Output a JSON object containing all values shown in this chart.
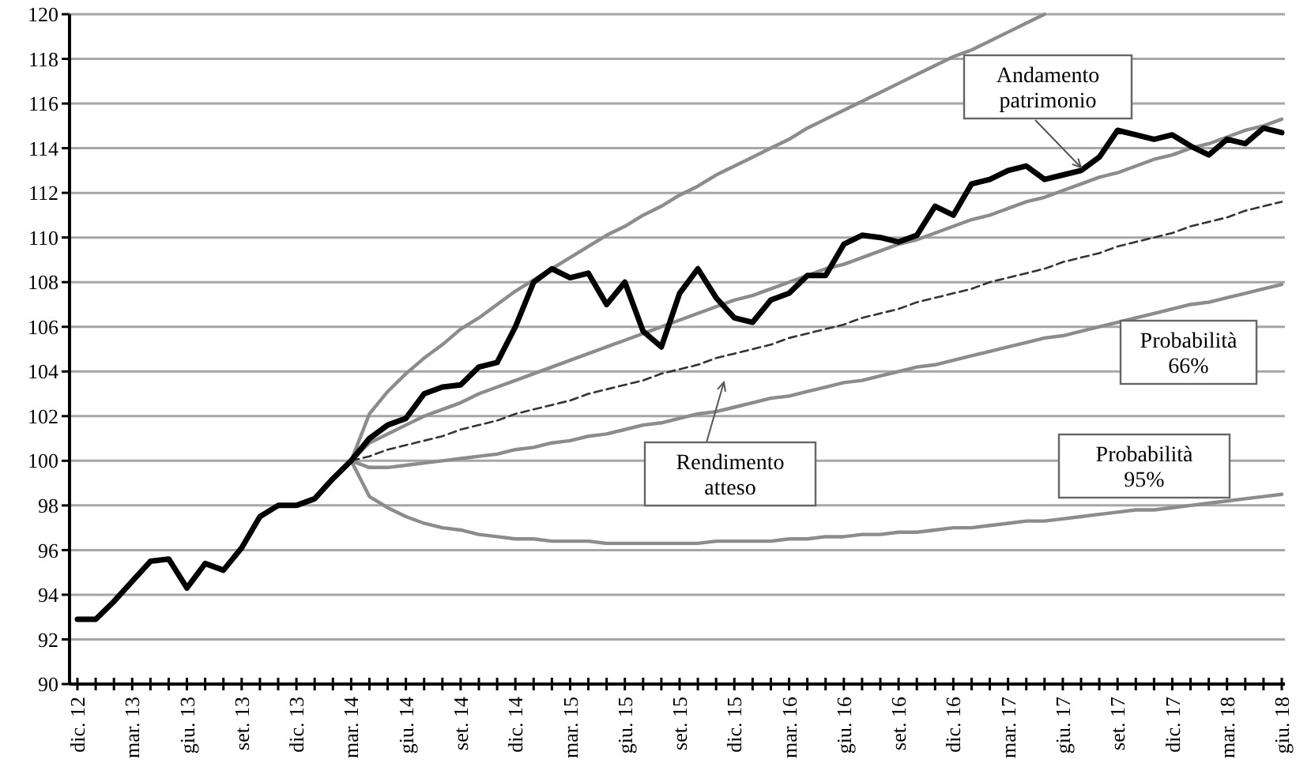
{
  "chart_data": {
    "type": "line",
    "categories": [
      "dic. 12",
      null,
      null,
      "mar. 13",
      null,
      null,
      "giu. 13",
      null,
      null,
      "set. 13",
      null,
      null,
      "dic. 13",
      null,
      null,
      "mar. 14",
      null,
      null,
      "giu. 14",
      null,
      null,
      "set. 14",
      null,
      null,
      "dic. 14",
      null,
      null,
      "mar. 15",
      null,
      null,
      "giu. 15",
      null,
      null,
      "set. 15",
      null,
      null,
      "dic. 15",
      null,
      null,
      "mar. 16",
      null,
      null,
      "giu. 16",
      null,
      null,
      "set. 16",
      null,
      null,
      "dic. 16",
      null,
      null,
      "mar. 17",
      null,
      null,
      "giu. 17",
      null,
      null,
      "set. 17",
      null,
      null,
      "dic. 17",
      null,
      null,
      "mar. 18",
      null,
      null,
      "giu. 18"
    ],
    "series": [
      {
        "color": "#8c8c8c",
        "line_style": "solid",
        "values": [
          null,
          null,
          null,
          null,
          null,
          null,
          null,
          null,
          null,
          null,
          null,
          null,
          null,
          null,
          null,
          100.0,
          102.1,
          103.1,
          103.9,
          104.6,
          105.2,
          105.9,
          106.4,
          107.0,
          107.6,
          108.1,
          108.6,
          109.1,
          109.6,
          110.1,
          110.5,
          111.0,
          111.4,
          111.9,
          112.3,
          112.8,
          113.2,
          113.6,
          114.0,
          114.4,
          114.9,
          115.3,
          115.7,
          116.1,
          116.5,
          116.9,
          117.3,
          117.7,
          118.1,
          118.4,
          118.8,
          119.2,
          119.6,
          120.0,
          null,
          null,
          null,
          null,
          null,
          null,
          null,
          null,
          null,
          null,
          null,
          null,
          null
        ]
      },
      {
        "color": "#8c8c8c",
        "line_style": "solid",
        "values": [
          null,
          null,
          null,
          null,
          null,
          null,
          null,
          null,
          null,
          null,
          null,
          null,
          null,
          null,
          null,
          100.0,
          100.8,
          101.2,
          101.6,
          102.0,
          102.3,
          102.6,
          103.0,
          103.3,
          103.6,
          103.9,
          104.2,
          104.5,
          104.8,
          105.1,
          105.4,
          105.7,
          106.0,
          106.3,
          106.6,
          106.9,
          107.2,
          107.4,
          107.7,
          108.0,
          108.3,
          108.6,
          108.8,
          109.1,
          109.4,
          109.7,
          109.9,
          110.2,
          110.5,
          110.8,
          111.0,
          111.3,
          111.6,
          111.8,
          112.1,
          112.4,
          112.7,
          112.9,
          113.2,
          113.5,
          113.7,
          114.0,
          114.2,
          114.5,
          114.8,
          115.0,
          115.3
        ]
      },
      {
        "color": "#333333",
        "line_style": "dashed",
        "values": [
          null,
          null,
          null,
          null,
          null,
          null,
          null,
          null,
          null,
          null,
          null,
          null,
          null,
          null,
          null,
          100.0,
          100.2,
          100.5,
          100.7,
          100.9,
          101.1,
          101.4,
          101.6,
          101.8,
          102.1,
          102.3,
          102.5,
          102.7,
          103.0,
          103.2,
          103.4,
          103.6,
          103.9,
          104.1,
          104.3,
          104.6,
          104.8,
          105.0,
          105.2,
          105.5,
          105.7,
          105.9,
          106.1,
          106.4,
          106.6,
          106.8,
          107.1,
          107.3,
          107.5,
          107.7,
          108.0,
          108.2,
          108.4,
          108.6,
          108.9,
          109.1,
          109.3,
          109.6,
          109.8,
          110.0,
          110.2,
          110.5,
          110.7,
          110.9,
          111.2,
          111.4,
          111.6
        ]
      },
      {
        "color": "#8c8c8c",
        "line_style": "solid",
        "values": [
          null,
          null,
          null,
          null,
          null,
          null,
          null,
          null,
          null,
          null,
          null,
          null,
          null,
          null,
          null,
          100.0,
          99.7,
          99.7,
          99.8,
          99.9,
          100.0,
          100.1,
          100.2,
          100.3,
          100.5,
          100.6,
          100.8,
          100.9,
          101.1,
          101.2,
          101.4,
          101.6,
          101.7,
          101.9,
          102.1,
          102.2,
          102.4,
          102.6,
          102.8,
          102.9,
          103.1,
          103.3,
          103.5,
          103.6,
          103.8,
          104.0,
          104.2,
          104.3,
          104.5,
          104.7,
          104.9,
          105.1,
          105.3,
          105.5,
          105.6,
          105.8,
          106.0,
          106.2,
          106.4,
          106.6,
          106.8,
          107.0,
          107.1,
          107.3,
          107.5,
          107.7,
          107.9
        ]
      },
      {
        "color": "#8c8c8c",
        "line_style": "solid",
        "values": [
          null,
          null,
          null,
          null,
          null,
          null,
          null,
          null,
          null,
          null,
          null,
          null,
          null,
          null,
          null,
          100.0,
          98.4,
          97.9,
          97.5,
          97.2,
          97.0,
          96.9,
          96.7,
          96.6,
          96.5,
          96.5,
          96.4,
          96.4,
          96.4,
          96.3,
          96.3,
          96.3,
          96.3,
          96.3,
          96.3,
          96.4,
          96.4,
          96.4,
          96.4,
          96.5,
          96.5,
          96.6,
          96.6,
          96.7,
          96.7,
          96.8,
          96.8,
          96.9,
          97.0,
          97.0,
          97.1,
          97.2,
          97.3,
          97.3,
          97.4,
          97.5,
          97.6,
          97.7,
          97.8,
          97.8,
          97.9,
          98.0,
          98.1,
          98.2,
          98.3,
          98.4,
          98.5
        ]
      },
      {
        "color": "#000000",
        "line_style": "solid",
        "values": [
          92.9,
          92.9,
          93.7,
          94.6,
          95.5,
          95.6,
          94.3,
          95.4,
          95.1,
          96.1,
          97.5,
          98.0,
          98.0,
          98.3,
          99.2,
          100.0,
          101.0,
          101.6,
          101.9,
          103.0,
          103.3,
          103.4,
          104.2,
          104.4,
          106.0,
          108.0,
          108.6,
          108.2,
          108.4,
          107.0,
          108.0,
          105.8,
          105.1,
          107.5,
          108.6,
          107.3,
          106.4,
          106.2,
          107.2,
          107.5,
          108.3,
          108.3,
          109.7,
          110.1,
          110.0,
          109.8,
          110.1,
          111.4,
          111.0,
          112.4,
          112.6,
          113.0,
          113.2,
          112.6,
          112.8,
          113.0,
          113.6,
          114.8,
          114.6,
          114.4,
          114.6,
          114.1,
          113.7,
          114.4,
          114.2,
          114.9,
          114.7
        ]
      }
    ],
    "ylim": [
      90,
      120
    ],
    "yticks": [
      90,
      92,
      94,
      96,
      98,
      100,
      102,
      104,
      106,
      108,
      110,
      112,
      114,
      116,
      118,
      120
    ],
    "grid": "y",
    "marker": "none",
    "annotations": [
      "Andamento\npatrimonio",
      "Rendimento\natteso",
      "Probabilità\n66%",
      "Probabilità\n95%"
    ]
  }
}
